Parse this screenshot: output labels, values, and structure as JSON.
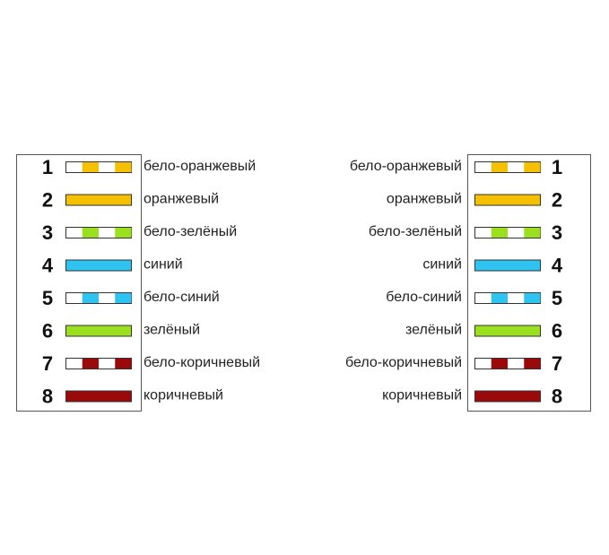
{
  "left": {
    "pins": [
      {
        "number": "1",
        "label": "бело-оранжевый",
        "color": "#f5c000",
        "striped": true
      },
      {
        "number": "2",
        "label": "оранжевый",
        "color": "#f5c000",
        "striped": false
      },
      {
        "number": "3",
        "label": "бело-зелёный",
        "color": "#9be01f",
        "striped": true
      },
      {
        "number": "4",
        "label": "синий",
        "color": "#2ec3f0",
        "striped": false
      },
      {
        "number": "5",
        "label": "бело-синий",
        "color": "#2ec3f0",
        "striped": true
      },
      {
        "number": "6",
        "label": "зелёный",
        "color": "#9be01f",
        "striped": false
      },
      {
        "number": "7",
        "label": "бело-коричневый",
        "color": "#9b0a0a",
        "striped": true
      },
      {
        "number": "8",
        "label": "коричневый",
        "color": "#9b0a0a",
        "striped": false
      }
    ]
  },
  "right": {
    "pins": [
      {
        "number": "1",
        "label": "бело-оранжевый",
        "color": "#f5c000",
        "striped": true
      },
      {
        "number": "2",
        "label": "оранжевый",
        "color": "#f5c000",
        "striped": false
      },
      {
        "number": "3",
        "label": "бело-зелёный",
        "color": "#9be01f",
        "striped": true
      },
      {
        "number": "4",
        "label": "синий",
        "color": "#2ec3f0",
        "striped": false
      },
      {
        "number": "5",
        "label": "бело-синий",
        "color": "#2ec3f0",
        "striped": true
      },
      {
        "number": "6",
        "label": "зелёный",
        "color": "#9be01f",
        "striped": false
      },
      {
        "number": "7",
        "label": "бело-коричневый",
        "color": "#9b0a0a",
        "striped": true
      },
      {
        "number": "8",
        "label": "коричневый",
        "color": "#9b0a0a",
        "striped": false
      }
    ]
  }
}
